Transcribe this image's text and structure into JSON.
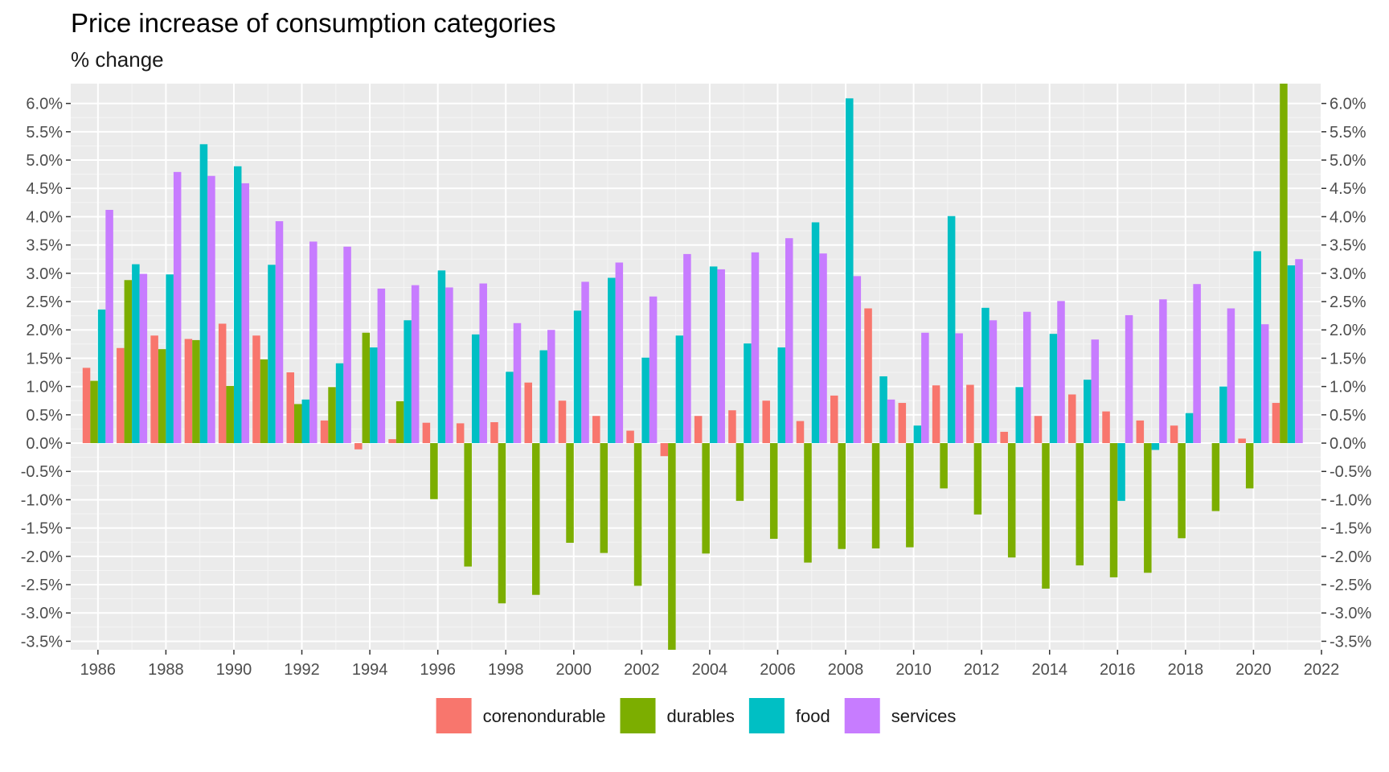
{
  "title": "Price increase of consumption categories",
  "subtitle": "% change",
  "chart_data": {
    "type": "bar",
    "xlabel": "",
    "ylabel": "",
    "xlim": [
      1985.2,
      2022
    ],
    "ylim": [
      -3.65,
      6.35
    ],
    "x_ticks": [
      1986,
      1988,
      1990,
      1992,
      1994,
      1996,
      1998,
      2000,
      2002,
      2004,
      2006,
      2008,
      2010,
      2012,
      2014,
      2016,
      2018,
      2020,
      2022
    ],
    "y_ticks": [
      -3.5,
      -3.0,
      -2.5,
      -2.0,
      -1.5,
      -1.0,
      -0.5,
      0.0,
      0.5,
      1.0,
      1.5,
      2.0,
      2.5,
      3.0,
      3.5,
      4.0,
      4.5,
      5.0,
      5.5,
      6.0
    ],
    "y_tick_labels": [
      "-3.5%",
      "-3.0%",
      "-2.5%",
      "-2.0%",
      "-1.5%",
      "-1.0%",
      "-0.5%",
      "0.0%",
      "0.5%",
      "1.0%",
      "1.5%",
      "2.0%",
      "2.5%",
      "3.0%",
      "3.5%",
      "4.0%",
      "4.5%",
      "5.0%",
      "5.5%",
      "6.0%"
    ],
    "grid": true,
    "legend_position": "bottom",
    "categories": [
      1986,
      1987,
      1988,
      1989,
      1990,
      1991,
      1992,
      1993,
      1994,
      1995,
      1996,
      1997,
      1998,
      1999,
      2000,
      2001,
      2002,
      2003,
      2004,
      2005,
      2006,
      2007,
      2008,
      2009,
      2010,
      2011,
      2012,
      2013,
      2014,
      2015,
      2016,
      2017,
      2018,
      2019,
      2020,
      2021
    ],
    "series": [
      {
        "name": "corenondurable",
        "color": "#F8766D",
        "values": [
          1.33,
          1.68,
          1.9,
          1.84,
          2.11,
          1.9,
          1.25,
          0.4,
          -0.11,
          0.07,
          0.36,
          0.35,
          0.37,
          1.07,
          0.75,
          0.48,
          0.22,
          -0.23,
          0.48,
          0.58,
          0.75,
          0.39,
          0.84,
          2.38,
          0.71,
          1.02,
          1.03,
          0.2,
          0.48,
          0.86,
          0.56,
          0.4,
          0.31,
          0.0,
          0.08,
          0.71
        ]
      },
      {
        "name": "durables",
        "color": "#7CAE00",
        "values": [
          1.1,
          2.88,
          1.66,
          1.82,
          1.01,
          1.48,
          0.69,
          0.99,
          1.95,
          0.74,
          -0.99,
          -2.18,
          -2.83,
          -2.68,
          -1.76,
          -1.94,
          -2.52,
          -3.65,
          -1.95,
          -1.02,
          -1.69,
          -2.11,
          -1.87,
          -1.86,
          -1.84,
          -0.8,
          -1.26,
          -2.02,
          -2.57,
          -2.16,
          -2.37,
          -2.29,
          -1.68,
          -1.2,
          -0.8,
          6.35
        ]
      },
      {
        "name": "food",
        "color": "#00BFC4",
        "values": [
          2.36,
          3.16,
          2.98,
          5.28,
          4.89,
          3.15,
          0.77,
          1.41,
          1.69,
          2.17,
          3.05,
          1.92,
          1.26,
          1.64,
          2.34,
          2.92,
          1.51,
          1.9,
          3.12,
          1.76,
          1.69,
          3.9,
          6.09,
          1.18,
          0.31,
          4.01,
          2.39,
          0.99,
          1.93,
          1.12,
          -1.02,
          -0.12,
          0.53,
          1.0,
          3.39,
          3.14
        ]
      },
      {
        "name": "services",
        "color": "#C77CFF",
        "values": [
          4.12,
          2.99,
          4.79,
          4.72,
          4.59,
          3.92,
          3.56,
          3.47,
          2.73,
          2.79,
          2.75,
          2.82,
          2.12,
          2.0,
          2.85,
          3.19,
          2.59,
          3.34,
          3.07,
          3.37,
          3.62,
          3.35,
          2.95,
          0.77,
          1.95,
          1.94,
          2.17,
          2.32,
          2.51,
          1.83,
          2.26,
          2.54,
          2.81,
          2.38,
          2.1,
          3.25
        ]
      }
    ]
  }
}
